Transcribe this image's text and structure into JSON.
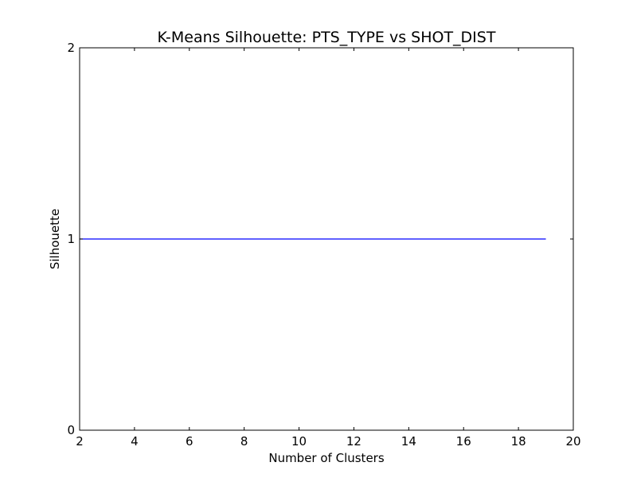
{
  "chart_data": {
    "type": "line",
    "title": "K-Means Silhouette: PTS_TYPE vs SHOT_DIST",
    "xlabel": "Number of Clusters",
    "ylabel": "Silhouette",
    "xlim": [
      2,
      20
    ],
    "ylim": [
      0,
      2
    ],
    "xticks": [
      "2",
      "4",
      "6",
      "8",
      "10",
      "12",
      "14",
      "16",
      "18",
      "20"
    ],
    "yticks": [
      "0",
      "1",
      "2"
    ],
    "grid": false,
    "legend": false,
    "series": [
      {
        "color": "#0000ff",
        "x": [
          2,
          3,
          4,
          5,
          6,
          7,
          8,
          9,
          10,
          11,
          12,
          13,
          14,
          15,
          16,
          17,
          18,
          19
        ],
        "y": [
          1,
          1,
          1,
          1,
          1,
          1,
          1,
          1,
          1,
          1,
          1,
          1,
          1,
          1,
          1,
          1,
          1,
          1
        ]
      }
    ]
  }
}
